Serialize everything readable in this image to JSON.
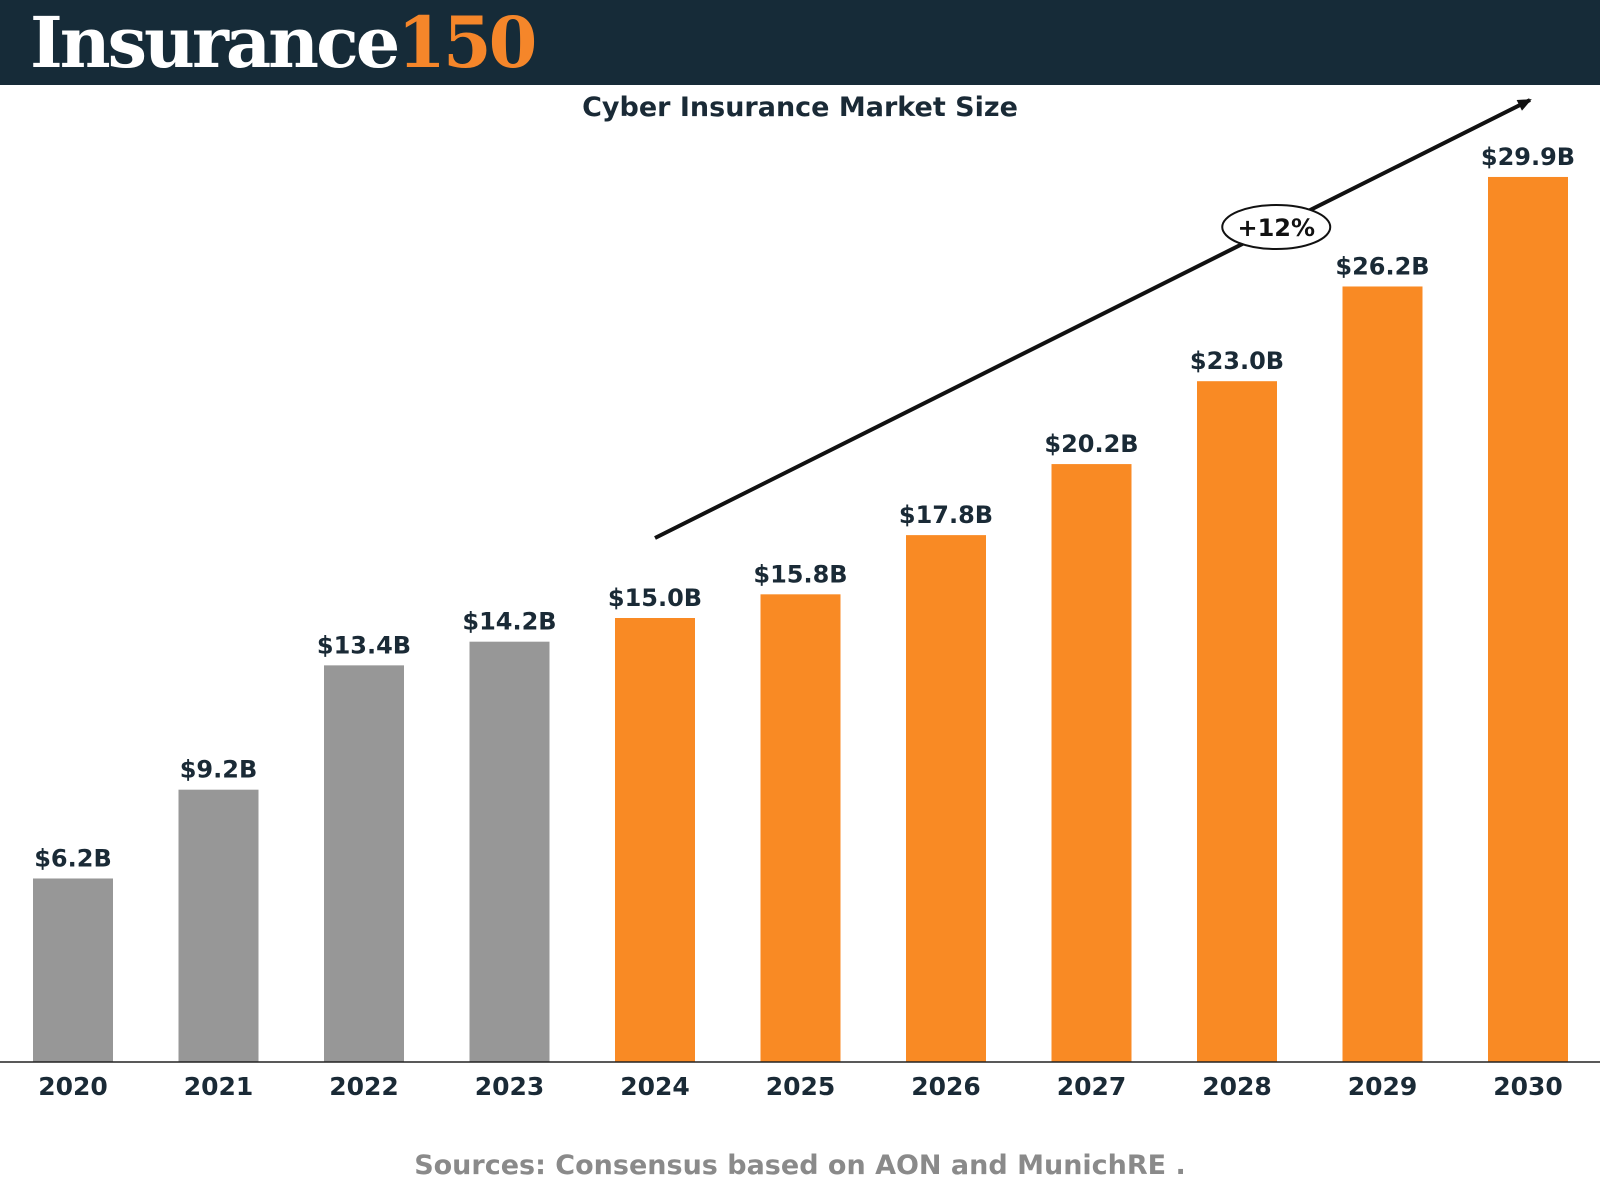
{
  "brand": {
    "word": "Insurance",
    "number": "150"
  },
  "colors": {
    "header_bg": "#162b38",
    "historical": "#979797",
    "forecast": "#f98a24",
    "text": "#1a2a36",
    "sources": "#8a8a8a"
  },
  "chart_data": {
    "type": "bar",
    "title": "Cyber Insurance Market Size",
    "categories": [
      "2020",
      "2021",
      "2022",
      "2023",
      "2024",
      "2025",
      "2026",
      "2027",
      "2028",
      "2029",
      "2030"
    ],
    "values": [
      6.2,
      9.2,
      13.4,
      14.2,
      15.0,
      15.8,
      17.8,
      20.2,
      23.0,
      26.2,
      29.9
    ],
    "labels": [
      "$6.2B",
      "$9.2B",
      "$13.4B",
      "$14.2B",
      "$15.0B",
      "$15.8B",
      "$17.8B",
      "$20.2B",
      "$23.0B",
      "$26.2B",
      "$29.9B"
    ],
    "bar_colors": [
      "historical",
      "historical",
      "historical",
      "historical",
      "forecast",
      "forecast",
      "forecast",
      "forecast",
      "forecast",
      "forecast",
      "forecast"
    ],
    "unit": "B",
    "ylim": [
      0,
      30
    ],
    "grid": false,
    "annotation": {
      "text": "+12%",
      "from_category": "2024",
      "to_category": "2030"
    }
  },
  "footer": {
    "sources": "Sources: Consensus based on AON and MunichRE ."
  }
}
